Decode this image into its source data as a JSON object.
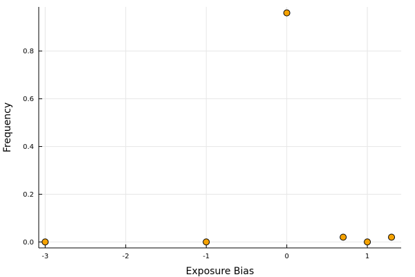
{
  "chart_data": {
    "type": "scatter",
    "title": "",
    "xlabel": "Exposure Bias",
    "ylabel": "Frequency",
    "xlim": [
      -3.08,
      1.42
    ],
    "ylim": [
      -0.025,
      0.985
    ],
    "xticks": [
      -3,
      -2,
      -1,
      0,
      1
    ],
    "xtick_labels": [
      "-3",
      "-2",
      "-1",
      "0",
      "1"
    ],
    "yticks": [
      0.0,
      0.2,
      0.4,
      0.6,
      0.8
    ],
    "ytick_labels": [
      "0.0",
      "0.2",
      "0.4",
      "0.6",
      "0.8"
    ],
    "grid": true,
    "legend": "none",
    "series": [
      {
        "color": "#f5a200",
        "points": [
          {
            "x": -3.0,
            "y": 0.0
          },
          {
            "x": -1.0,
            "y": 0.0
          },
          {
            "x": 0.0,
            "y": 0.96
          },
          {
            "x": 0.7,
            "y": 0.02
          },
          {
            "x": 1.0,
            "y": 0.0
          },
          {
            "x": 1.3,
            "y": 0.02
          }
        ]
      }
    ]
  }
}
